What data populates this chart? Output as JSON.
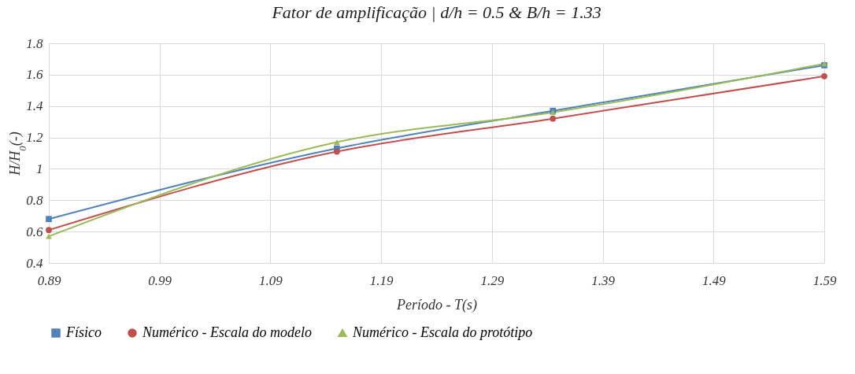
{
  "chart_data": {
    "type": "line",
    "title": "Fator de amplificação | d/h = 0.5 & B/h = 1.33",
    "xlabel": "Período - T(s)",
    "ylabel": "H/H$_{0}$(-)",
    "x": [
      0.89,
      1.15,
      1.345,
      1.59
    ],
    "series": [
      {
        "name": "Físico",
        "color": "#4f81bd",
        "marker": "square",
        "values": [
          0.68,
          1.13,
          1.37,
          1.66
        ]
      },
      {
        "name": "Numérico - Escala do modelo",
        "color": "#c0504d",
        "marker": "circle",
        "values": [
          0.61,
          1.11,
          1.32,
          1.59
        ]
      },
      {
        "name": "Numérico - Escala do protótipo",
        "color": "#9bbb59",
        "marker": "triangle",
        "values": [
          0.57,
          1.17,
          1.36,
          1.67
        ]
      }
    ],
    "xlim": [
      0.89,
      1.59
    ],
    "xticks": [
      0.89,
      0.99,
      1.09,
      1.19,
      1.29,
      1.39,
      1.49,
      1.59
    ],
    "ylim": [
      0.4,
      1.8
    ],
    "yticks": [
      0.4,
      0.6,
      0.8,
      1,
      1.2,
      1.4,
      1.6,
      1.8
    ],
    "grid": true,
    "legend": "bottom"
  }
}
